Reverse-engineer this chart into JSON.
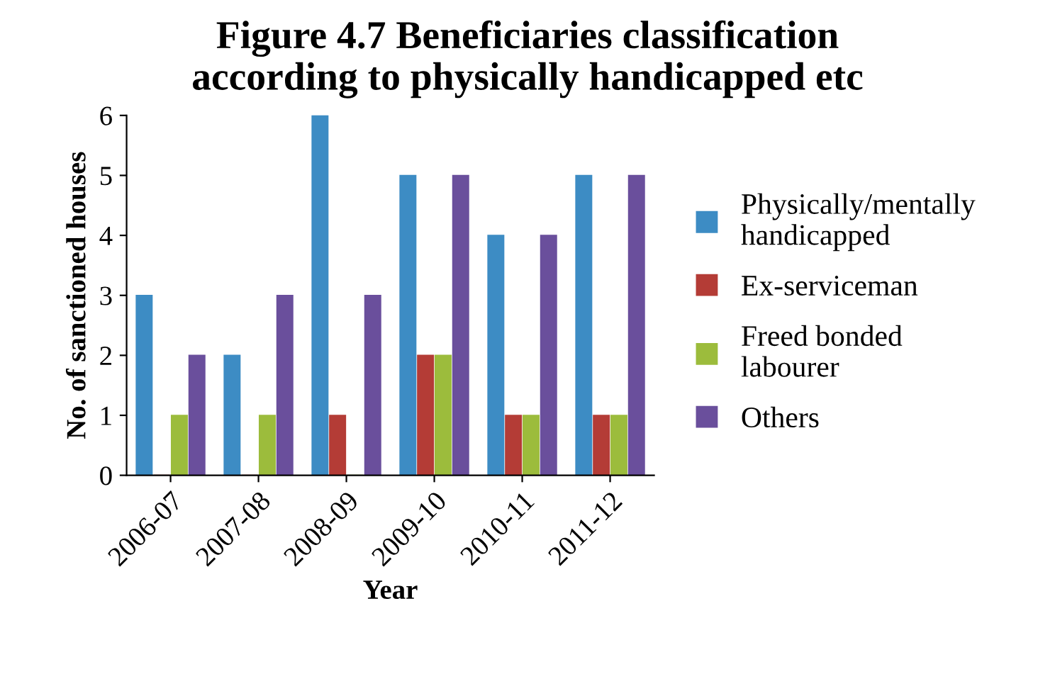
{
  "chart_data": {
    "type": "bar",
    "title": "Figure 4.7 Beneficiaries classification\naccording to physically handicapped etc",
    "xlabel": "Year",
    "ylabel": "No. of sanctioned houses",
    "categories": [
      "2006-07",
      "2007-08",
      "2008-09",
      "2009-10",
      "2010-11",
      "2011-12"
    ],
    "series": [
      {
        "name": "Physically/mentally\nhandicapped",
        "color": "#3d8cc4",
        "values": [
          3,
          2,
          6,
          5,
          4,
          5
        ]
      },
      {
        "name": "Ex-serviceman",
        "color": "#b43c36",
        "values": [
          0,
          0,
          1,
          2,
          1,
          1
        ]
      },
      {
        "name": "Freed bonded\nlabourer",
        "color": "#9cbc3c",
        "values": [
          1,
          1,
          0,
          2,
          1,
          1
        ]
      },
      {
        "name": "Others",
        "color": "#6a4f9c",
        "values": [
          2,
          3,
          3,
          5,
          4,
          5
        ]
      }
    ],
    "ylim": [
      0,
      6
    ],
    "yticks": [
      0,
      1,
      2,
      3,
      4,
      5,
      6
    ],
    "grid": false,
    "legend": "right"
  }
}
